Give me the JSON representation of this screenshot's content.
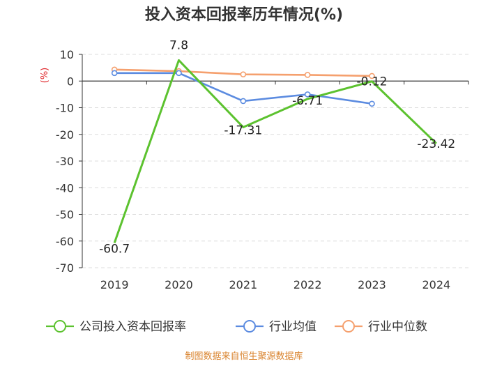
{
  "chart_data": {
    "type": "line",
    "title": "投入资本回报率历年情况(%)",
    "ylabel": "(%)",
    "xlabel": "",
    "categories": [
      "2019",
      "2020",
      "2021",
      "2022",
      "2023",
      "2024"
    ],
    "ylim": [
      -70,
      10
    ],
    "yticks": [
      10,
      0,
      -10,
      -20,
      -30,
      -40,
      -50,
      -60,
      -70
    ],
    "grid": true,
    "legend_position": "bottom",
    "series": [
      {
        "name": "公司投入资本回报率",
        "color": "#5cc22f",
        "values": [
          -60.7,
          7.8,
          -17.31,
          -6.71,
          -0.12,
          -23.42
        ],
        "labels": [
          "-60.7",
          "7.8",
          "-17.31",
          "-6.71",
          "-0.12",
          "-23.42"
        ]
      },
      {
        "name": "行业均值",
        "color": "#5b8be0",
        "values": [
          3.0,
          3.0,
          -7.5,
          -5.0,
          -8.5,
          null
        ]
      },
      {
        "name": "行业中位数",
        "color": "#f5a06e",
        "values": [
          4.3,
          3.7,
          2.5,
          2.3,
          1.9,
          null
        ]
      }
    ]
  },
  "source": "制图数据来自恒生聚源数据库"
}
